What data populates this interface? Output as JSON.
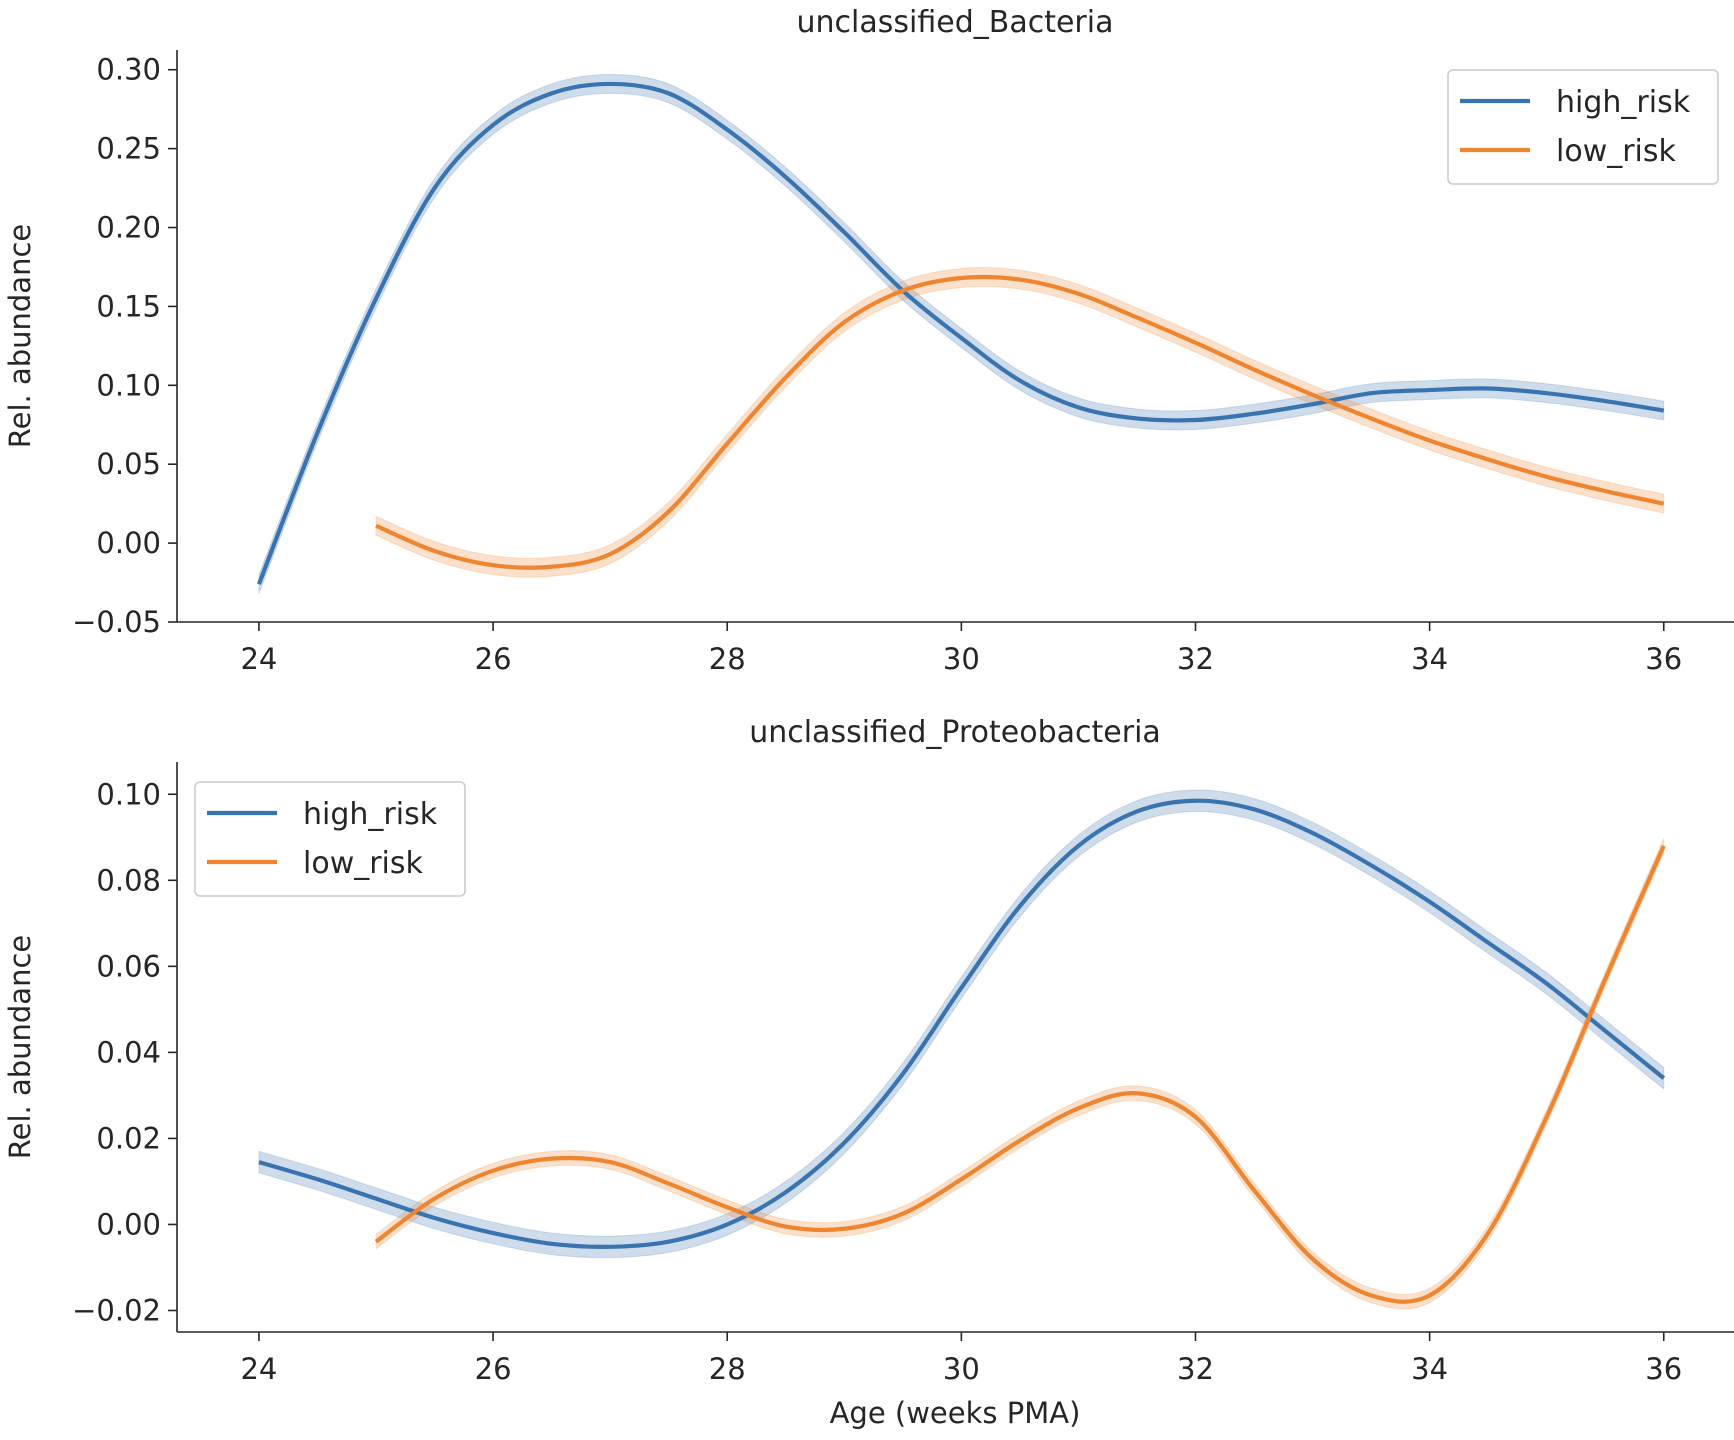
{
  "chart_data": [
    {
      "type": "line",
      "title": "unclassified_Bacteria",
      "xlabel": "",
      "ylabel": "Rel. abundance",
      "xlim": [
        23.3,
        36.6
      ],
      "ylim": [
        -0.05,
        0.3125
      ],
      "x_ticks": [
        24,
        26,
        28,
        30,
        32,
        34,
        36
      ],
      "x_tick_labels": [
        "24",
        "26",
        "28",
        "30",
        "32",
        "34",
        "36"
      ],
      "y_ticks": [
        -0.05,
        0.0,
        0.05,
        0.1,
        0.15,
        0.2,
        0.25,
        0.3
      ],
      "y_tick_labels": [
        "−0.05",
        "0.00",
        "0.05",
        "0.10",
        "0.15",
        "0.20",
        "0.25",
        "0.30"
      ],
      "legend_position": "top-right",
      "grid": false,
      "series": [
        {
          "name": "high_risk",
          "color": "#3a74b0",
          "band": 0.006,
          "x": [
            24.0,
            24.5,
            25.0,
            25.5,
            26.0,
            26.5,
            27.0,
            27.5,
            28.0,
            28.5,
            29.0,
            29.5,
            30.0,
            30.5,
            31.0,
            31.5,
            32.0,
            32.5,
            33.0,
            33.5,
            34.0,
            34.5,
            35.0,
            35.5,
            36.0
          ],
          "y": [
            -0.026,
            0.07,
            0.155,
            0.225,
            0.265,
            0.285,
            0.291,
            0.285,
            0.262,
            0.232,
            0.197,
            0.16,
            0.13,
            0.103,
            0.086,
            0.079,
            0.078,
            0.082,
            0.088,
            0.095,
            0.097,
            0.098,
            0.095,
            0.09,
            0.084
          ]
        },
        {
          "name": "low_risk",
          "color": "#ee8531",
          "band": 0.006,
          "x": [
            25.0,
            25.5,
            26.0,
            26.5,
            27.0,
            27.5,
            28.0,
            28.5,
            29.0,
            29.5,
            30.0,
            30.5,
            31.0,
            31.5,
            32.0,
            32.5,
            33.0,
            33.5,
            34.0,
            34.5,
            35.0,
            35.5,
            36.0
          ],
          "y": [
            0.011,
            -0.005,
            -0.014,
            -0.015,
            -0.007,
            0.02,
            0.063,
            0.105,
            0.14,
            0.16,
            0.168,
            0.167,
            0.158,
            0.143,
            0.127,
            0.11,
            0.094,
            0.079,
            0.065,
            0.053,
            0.042,
            0.033,
            0.025
          ]
        }
      ]
    },
    {
      "type": "line",
      "title": "unclassified_Proteobacteria",
      "xlabel": "Age (weeks PMA)",
      "ylabel": "Rel. abundance",
      "xlim": [
        23.3,
        36.6
      ],
      "ylim": [
        -0.025,
        0.1075
      ],
      "x_ticks": [
        24,
        26,
        28,
        30,
        32,
        34,
        36
      ],
      "x_tick_labels": [
        "24",
        "26",
        "28",
        "30",
        "32",
        "34",
        "36"
      ],
      "y_ticks": [
        -0.02,
        0.0,
        0.02,
        0.04,
        0.06,
        0.08,
        0.1
      ],
      "y_tick_labels": [
        "−0.02",
        "0.00",
        "0.02",
        "0.04",
        "0.06",
        "0.08",
        "0.10"
      ],
      "legend_position": "top-left",
      "grid": false,
      "series": [
        {
          "name": "high_risk",
          "color": "#3a74b0",
          "band": 0.0025,
          "x": [
            24.0,
            24.5,
            25.0,
            25.5,
            26.0,
            26.5,
            27.0,
            27.5,
            28.0,
            28.5,
            29.0,
            29.5,
            30.0,
            30.5,
            31.0,
            31.5,
            32.0,
            32.5,
            33.0,
            33.5,
            34.0,
            34.5,
            35.0,
            35.5,
            36.0
          ],
          "y": [
            0.0145,
            0.0105,
            0.006,
            0.0015,
            -0.002,
            -0.0045,
            -0.0052,
            -0.004,
            0.0,
            0.0075,
            0.019,
            0.035,
            0.055,
            0.074,
            0.088,
            0.096,
            0.0985,
            0.0965,
            0.091,
            0.0835,
            0.075,
            0.0655,
            0.056,
            0.045,
            0.034
          ]
        },
        {
          "name": "low_risk",
          "color": "#ee8531",
          "band": 0.0017,
          "x": [
            25.0,
            25.5,
            26.0,
            26.5,
            27.0,
            27.5,
            28.0,
            28.5,
            29.0,
            29.5,
            30.0,
            30.5,
            31.0,
            31.5,
            32.0,
            32.5,
            33.0,
            33.5,
            34.0,
            34.5,
            35.0,
            35.5,
            36.0
          ],
          "y": [
            -0.004,
            0.006,
            0.0125,
            0.0153,
            0.0145,
            0.0095,
            0.004,
            -0.0005,
            -0.001,
            0.0025,
            0.0105,
            0.0195,
            0.027,
            0.0305,
            0.025,
            0.008,
            -0.008,
            -0.0165,
            -0.0165,
            -0.002,
            0.025,
            0.057,
            0.088
          ]
        }
      ]
    }
  ]
}
